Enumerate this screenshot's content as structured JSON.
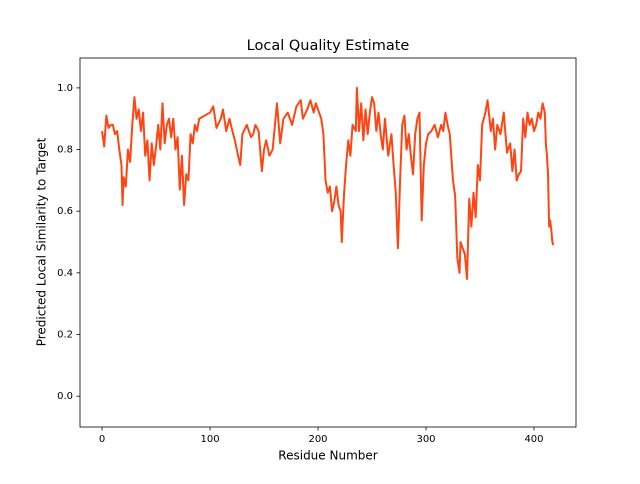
{
  "chart_data": {
    "type": "line",
    "title": "Local Quality Estimate",
    "x_label": "Residue Number",
    "y_label": "Predicted Local Similarity to Target",
    "x": [
      0,
      2,
      4,
      6,
      8,
      10,
      12,
      14,
      16,
      18,
      19,
      20,
      22,
      24,
      26,
      28,
      30,
      32,
      34,
      36,
      38,
      40,
      42,
      44,
      46,
      48,
      50,
      52,
      54,
      56,
      58,
      60,
      62,
      64,
      66,
      68,
      70,
      72,
      74,
      76,
      78,
      80,
      82,
      84,
      86,
      88,
      90,
      95,
      100,
      103,
      106,
      110,
      112,
      115,
      118,
      120,
      123,
      126,
      128,
      130,
      134,
      138,
      140,
      142,
      145,
      148,
      150,
      152,
      155,
      158,
      162,
      165,
      168,
      172,
      176,
      180,
      184,
      186,
      190,
      193,
      196,
      198,
      200,
      203,
      205,
      207,
      209,
      211,
      213,
      215,
      217,
      219,
      221,
      222,
      224,
      226,
      228,
      230,
      232,
      235,
      236,
      238,
      240,
      242,
      244,
      246,
      248,
      250,
      252,
      254,
      256,
      258,
      260,
      262,
      265,
      268,
      270,
      272,
      274,
      276,
      278,
      280,
      282,
      284,
      286,
      288,
      290,
      292,
      294,
      296,
      298,
      300,
      302,
      305,
      308,
      311,
      314,
      316,
      318,
      320,
      322,
      325,
      327,
      329,
      331,
      332,
      334,
      336,
      338,
      340,
      342,
      344,
      346,
      348,
      350,
      352,
      355,
      357,
      360,
      362,
      364,
      366,
      369,
      372,
      375,
      378,
      380,
      382,
      384,
      386,
      388,
      390,
      392,
      394,
      396,
      398,
      400,
      402,
      404,
      406,
      408,
      410,
      411,
      412,
      413,
      414,
      415,
      416,
      417,
      418
    ],
    "values": [
      0.86,
      0.81,
      0.91,
      0.87,
      0.88,
      0.88,
      0.85,
      0.86,
      0.8,
      0.75,
      0.62,
      0.71,
      0.68,
      0.8,
      0.76,
      0.88,
      0.97,
      0.9,
      0.93,
      0.86,
      0.92,
      0.78,
      0.83,
      0.7,
      0.82,
      0.75,
      0.81,
      0.88,
      0.8,
      0.95,
      0.82,
      0.88,
      0.9,
      0.84,
      0.9,
      0.8,
      0.84,
      0.67,
      0.78,
      0.62,
      0.72,
      0.7,
      0.85,
      0.82,
      0.88,
      0.86,
      0.9,
      0.91,
      0.92,
      0.94,
      0.87,
      0.9,
      0.93,
      0.86,
      0.9,
      0.87,
      0.83,
      0.78,
      0.75,
      0.85,
      0.88,
      0.84,
      0.85,
      0.88,
      0.86,
      0.73,
      0.8,
      0.83,
      0.78,
      0.8,
      0.95,
      0.82,
      0.9,
      0.92,
      0.88,
      0.94,
      0.96,
      0.9,
      0.93,
      0.96,
      0.92,
      0.95,
      0.93,
      0.9,
      0.85,
      0.7,
      0.66,
      0.68,
      0.6,
      0.63,
      0.68,
      0.62,
      0.6,
      0.5,
      0.65,
      0.75,
      0.83,
      0.78,
      0.88,
      0.86,
      1.0,
      0.86,
      0.95,
      0.83,
      0.93,
      0.85,
      0.92,
      0.97,
      0.95,
      0.86,
      0.92,
      0.85,
      0.8,
      0.9,
      0.78,
      0.85,
      0.75,
      0.66,
      0.48,
      0.7,
      0.88,
      0.91,
      0.8,
      0.85,
      0.78,
      0.72,
      0.85,
      0.9,
      0.92,
      0.57,
      0.75,
      0.82,
      0.85,
      0.86,
      0.88,
      0.84,
      0.88,
      0.86,
      0.92,
      0.88,
      0.85,
      0.7,
      0.65,
      0.45,
      0.4,
      0.5,
      0.48,
      0.46,
      0.38,
      0.64,
      0.55,
      0.66,
      0.58,
      0.75,
      0.7,
      0.88,
      0.92,
      0.96,
      0.86,
      0.9,
      0.8,
      0.88,
      0.85,
      0.92,
      0.79,
      0.82,
      0.73,
      0.8,
      0.7,
      0.72,
      0.73,
      0.9,
      0.84,
      0.92,
      0.88,
      0.9,
      0.86,
      0.88,
      0.92,
      0.9,
      0.95,
      0.92,
      0.82,
      0.78,
      0.72,
      0.55,
      0.57,
      0.54,
      0.5,
      0.49
    ],
    "color": "#ff4513",
    "xlim": [
      -20.4,
      438.9
    ],
    "xticks": [
      0,
      100,
      200,
      300,
      400
    ],
    "ylim": [
      -0.1,
      1.097
    ],
    "yticks": [
      {
        "value": 0,
        "label": "0.0"
      },
      0.2,
      0.4,
      0.6,
      0.8,
      {
        "value": 1,
        "label": "1.0"
      }
    ]
  }
}
